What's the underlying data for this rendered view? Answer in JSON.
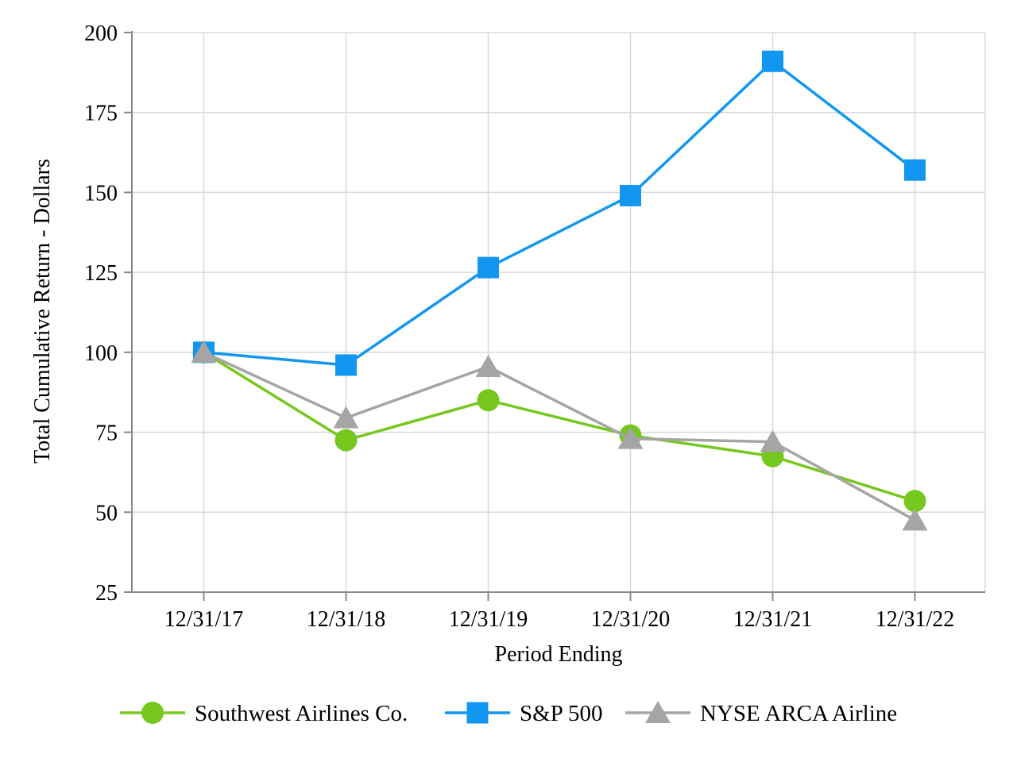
{
  "chart_data": {
    "type": "line",
    "title": "",
    "xlabel": "Period Ending",
    "ylabel": "Total Cumulative Return - Dollars",
    "categories": [
      "12/31/17",
      "12/31/18",
      "12/31/19",
      "12/31/20",
      "12/31/21",
      "12/31/22"
    ],
    "series": [
      {
        "name": "Southwest Airlines Co.",
        "marker": "circle",
        "color": "#76C71E",
        "values": [
          100,
          72.5,
          85,
          74,
          67.5,
          53.5
        ]
      },
      {
        "name": "S&P 500",
        "marker": "square",
        "color": "#1297F0",
        "values": [
          100,
          96,
          126.5,
          149,
          191,
          157
        ]
      },
      {
        "name": "NYSE ARCA Airline",
        "marker": "triangle",
        "color": "#A5A5A5",
        "values": [
          100,
          79.5,
          95.5,
          73,
          72,
          47.5
        ]
      }
    ],
    "ylim": [
      25,
      200
    ],
    "ytick_step": 25,
    "yticks": [
      200,
      175,
      150,
      125,
      100,
      75,
      50,
      25
    ],
    "grid": true,
    "legend_position": "bottom",
    "gridline_color": "#D9D9D9",
    "axis_color": "#898989",
    "text_color": "#000000",
    "background_color": "#FFFFFF"
  }
}
